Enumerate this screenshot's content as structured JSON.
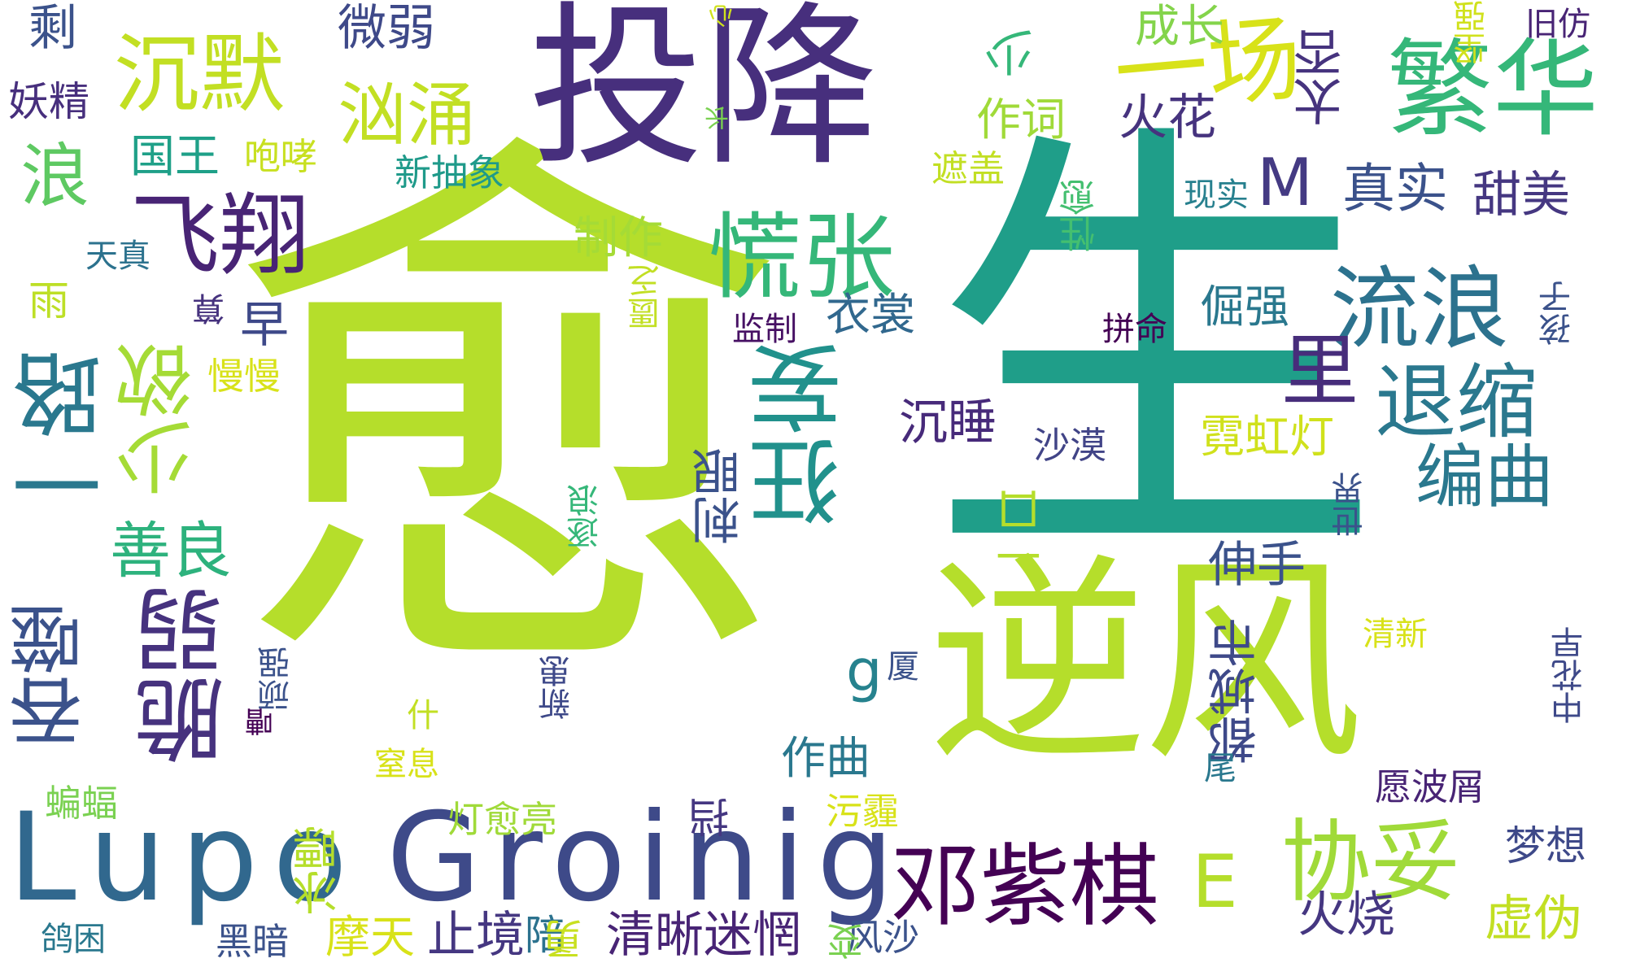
{
  "words": [
    {
      "id": "yu",
      "text": "愈",
      "color": "#b5de2b",
      "vertical": false
    },
    {
      "id": "sheng",
      "text": "生",
      "color": "#1f9e89",
      "vertical": false
    },
    {
      "id": "nifeng",
      "text": "逆风",
      "color": "#b5de2b",
      "vertical": false
    },
    {
      "id": "touxiang",
      "text": "投降",
      "color": "#472f7d",
      "vertical": false
    },
    {
      "id": "lupo",
      "text": "Lupo",
      "color": "#31688e",
      "vertical": false
    },
    {
      "id": "groinig",
      "text": "Groinig",
      "color": "#3e4a89",
      "vertical": false
    },
    {
      "id": "fanhua",
      "text": "繁华",
      "color": "#35b779",
      "vertical": false
    },
    {
      "id": "huangzhang",
      "text": "慌张",
      "color": "#35b779",
      "vertical": false
    },
    {
      "id": "feixiang",
      "text": "飞翔",
      "color": "#482475",
      "vertical": false
    },
    {
      "id": "chenmo",
      "text": "沉默",
      "color": "#c2df23",
      "vertical": false
    },
    {
      "id": "xiongyong",
      "text": "汹涌",
      "color": "#c2df23",
      "vertical": false
    },
    {
      "id": "yichang",
      "text": "一场",
      "color": "#d8e219",
      "vertical": false
    },
    {
      "id": "liulang",
      "text": "流浪",
      "color": "#2c728e",
      "vertical": false
    },
    {
      "id": "tuisuo",
      "text": "退缩",
      "color": "#2a788e",
      "vertical": false
    },
    {
      "id": "bianqu",
      "text": "编曲",
      "color": "#2a788e",
      "vertical": false
    },
    {
      "id": "kuangwang",
      "text": "狂妄",
      "color": "#21918c",
      "vertical": true
    },
    {
      "id": "yilu",
      "text": "一路",
      "color": "#2a788e",
      "vertical": true
    },
    {
      "id": "shaoyu",
      "text": "少欲",
      "color": "#a5db36",
      "vertical": true
    },
    {
      "id": "cuiruo",
      "text": "脆弱",
      "color": "#46327e",
      "vertical": true
    },
    {
      "id": "tunshi",
      "text": "吞噬",
      "color": "#3b528b",
      "vertical": true
    },
    {
      "id": "shanliang",
      "text": "善良",
      "color": "#2db27d",
      "vertical": false
    },
    {
      "id": "dengziqi",
      "text": "邓紫棋",
      "color": "#440154",
      "vertical": false
    },
    {
      "id": "xietuo",
      "text": "协妥",
      "color": "#a0da39",
      "vertical": false
    },
    {
      "id": "e",
      "text": "E",
      "color": "#b5de2b",
      "vertical": false
    },
    {
      "id": "g",
      "text": "g",
      "color": "#26828e",
      "vertical": false
    },
    {
      "id": "m",
      "text": "M",
      "color": "#443a83",
      "vertical": false
    },
    {
      "id": "li",
      "text": "里",
      "color": "#472d7b",
      "vertical": false
    },
    {
      "id": "langtop",
      "text": "浪",
      "color": "#5ec962",
      "vertical": false
    },
    {
      "id": "sheng2",
      "text": "剩",
      "color": "#3b528b",
      "vertical": false
    },
    {
      "id": "weiruo",
      "text": "微弱",
      "color": "#3e4989",
      "vertical": false
    },
    {
      "id": "shao",
      "text": "少",
      "color": "#35b779",
      "vertical": true
    },
    {
      "id": "chengzhang",
      "text": "成长",
      "color": "#84d44b",
      "vertical": false
    },
    {
      "id": "taibu",
      "text": "太否",
      "color": "#46337e",
      "vertical": true
    },
    {
      "id": "jianqiang",
      "text": "坚强",
      "color": "#d0e11c",
      "vertical": true
    },
    {
      "id": "jiufang",
      "text": "旧仿",
      "color": "#482475",
      "vertical": false
    },
    {
      "id": "xin1",
      "text": "心",
      "color": "#d0e11c",
      "vertical": true
    },
    {
      "id": "yaojing",
      "text": "妖精",
      "color": "#472f7d",
      "vertical": false
    },
    {
      "id": "guowang",
      "text": "国王",
      "color": "#1fa088",
      "vertical": false
    },
    {
      "id": "paoxiao",
      "text": "咆哮",
      "color": "#c8e020",
      "vertical": false
    },
    {
      "id": "zhang",
      "text": "长",
      "color": "#7ad151",
      "vertical": true
    },
    {
      "id": "zuoci",
      "text": "作词",
      "color": "#a0da39",
      "vertical": false
    },
    {
      "id": "huohua",
      "text": "火花",
      "color": "#46337e",
      "vertical": false
    },
    {
      "id": "xinchouxiang",
      "text": "新抽象",
      "color": "#1f9a8a",
      "vertical": false
    },
    {
      "id": "zhegai",
      "text": "遮盖",
      "color": "#c2df23",
      "vertical": false
    },
    {
      "id": "zhenshi",
      "text": "真实",
      "color": "#3b528b",
      "vertical": false
    },
    {
      "id": "tianmei",
      "text": "甜美",
      "color": "#453781",
      "vertical": false
    },
    {
      "id": "xianshi",
      "text": "现实",
      "color": "#27808e",
      "vertical": false
    },
    {
      "id": "xingyu",
      "text": "性愈",
      "color": "#44bf70",
      "vertical": true
    },
    {
      "id": "tianzhen",
      "text": "天真",
      "color": "#2c728e",
      "vertical": false
    },
    {
      "id": "zhizuo",
      "text": "制作",
      "color": "#a5db36",
      "vertical": false
    },
    {
      "id": "haizi",
      "text": "孩子",
      "color": "#3b528b",
      "vertical": true
    },
    {
      "id": "yu2",
      "text": "雨",
      "color": "#bddf26",
      "vertical": false
    },
    {
      "id": "kuifa",
      "text": "匮乏",
      "color": "#c2df23",
      "vertical": true
    },
    {
      "id": "zao",
      "text": "早",
      "color": "#3e4989",
      "vertical": false
    },
    {
      "id": "jianzhi",
      "text": "监制",
      "color": "#471164",
      "vertical": false
    },
    {
      "id": "yishang",
      "text": "衣裳",
      "color": "#31688e",
      "vertical": false
    },
    {
      "id": "juejiang",
      "text": "倔强",
      "color": "#2a788e",
      "vertical": false
    },
    {
      "id": "pinming",
      "text": "拼命",
      "color": "#440154",
      "vertical": false
    },
    {
      "id": "ge",
      "text": "算",
      "color": "#46327e",
      "vertical": true
    },
    {
      "id": "manman",
      "text": "慢慢",
      "color": "#d8e219",
      "vertical": false
    },
    {
      "id": "chenshui",
      "text": "沉睡",
      "color": "#472a7a",
      "vertical": false
    },
    {
      "id": "nihongdeng",
      "text": "霓虹灯",
      "color": "#d0e11c",
      "vertical": false
    },
    {
      "id": "shamo",
      "text": "沙漠",
      "color": "#414487",
      "vertical": false
    },
    {
      "id": "ciyan",
      "text": "刺眼",
      "color": "#3b528b",
      "vertical": true
    },
    {
      "id": "yikou",
      "text": "一口",
      "color": "#b5de2b",
      "vertical": true
    },
    {
      "id": "shijie",
      "text": "世界",
      "color": "#3b528b",
      "vertical": true
    },
    {
      "id": "zhulang",
      "text": "逐浪",
      "color": "#35b779",
      "vertical": true
    },
    {
      "id": "shenshou",
      "text": "伸手",
      "color": "#3b528b",
      "vertical": false
    },
    {
      "id": "dushi",
      "text": "都城市",
      "color": "#3e4989",
      "vertical": true
    },
    {
      "id": "xia",
      "text": "厦",
      "color": "#3b528b",
      "vertical": false
    },
    {
      "id": "qingxin",
      "text": "清新",
      "color": "#d8e219",
      "vertical": false
    },
    {
      "id": "jiaqiang",
      "text": "顽强",
      "color": "#3b528b",
      "vertical": true
    },
    {
      "id": "xinxi",
      "text": "新患",
      "color": "#3e4989",
      "vertical": true
    },
    {
      "id": "shen",
      "text": "什",
      "color": "#c2df23",
      "vertical": false
    },
    {
      "id": "zhongai",
      "text": "中花早",
      "color": "#3e4989",
      "vertical": true
    },
    {
      "id": "zuoqu",
      "text": "作曲",
      "color": "#2a788e",
      "vertical": false
    },
    {
      "id": "zhixi",
      "text": "窒息",
      "color": "#d8e219",
      "vertical": false
    },
    {
      "id": "zhou",
      "text": "嘈",
      "color": "#440154",
      "vertical": true
    },
    {
      "id": "wei",
      "text": "尾",
      "color": "#2a788e",
      "vertical": false
    },
    {
      "id": "yuanbomei",
      "text": "愿波屑",
      "color": "#482475",
      "vertical": false
    },
    {
      "id": "bianfu",
      "text": "蝙蝠",
      "color": "#7ad151",
      "vertical": false
    },
    {
      "id": "dengyuliang",
      "text": "灯愈亮",
      "color": "#a0da39",
      "vertical": false
    },
    {
      "id": "wumai",
      "text": "污霾",
      "color": "#d8e219",
      "vertical": false
    },
    {
      "id": "dang",
      "text": "挡",
      "color": "#453781",
      "vertical": true
    },
    {
      "id": "mengxiang",
      "text": "梦想",
      "color": "#3e4989",
      "vertical": false
    },
    {
      "id": "jiexie",
      "text": "冰瞟",
      "color": "#b5de2b",
      "vertical": true
    },
    {
      "id": "huoshao",
      "text": "火烧",
      "color": "#453781",
      "vertical": false
    },
    {
      "id": "xuwei",
      "text": "虚伪",
      "color": "#c2df23",
      "vertical": false
    },
    {
      "id": "gekun",
      "text": "鸽困",
      "color": "#2a788e",
      "vertical": false
    },
    {
      "id": "heian",
      "text": "黑暗",
      "color": "#3b528b",
      "vertical": false
    },
    {
      "id": "motian",
      "text": "摩天",
      "color": "#d8e219",
      "vertical": false
    },
    {
      "id": "zhijing",
      "text": "止境",
      "color": "#453781",
      "vertical": false
    },
    {
      "id": "pei",
      "text": "陪",
      "color": "#2c728e",
      "vertical": false
    },
    {
      "id": "yong",
      "text": "勇",
      "color": "#c8e020",
      "vertical": true
    },
    {
      "id": "qingximimang",
      "text": "清晰迷惘",
      "color": "#482475",
      "vertical": false
    },
    {
      "id": "fengsha",
      "text": "风沙",
      "color": "#3b528b",
      "vertical": false
    },
    {
      "id": "bian",
      "text": "变",
      "color": "#7ad151",
      "vertical": true
    }
  ]
}
